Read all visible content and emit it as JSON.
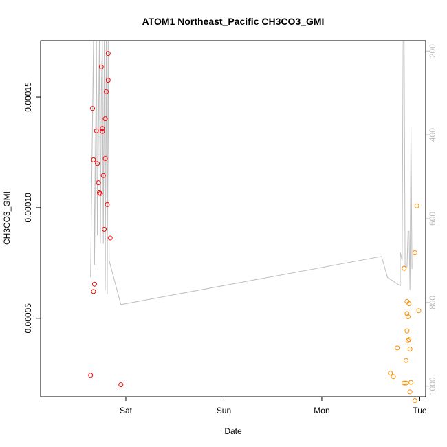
{
  "chart_data": {
    "type": "scatter",
    "title": "ATOM1 Northeast_Pacific CH3CO3_GMI",
    "xlabel": "Date",
    "ylabel": "CH3CO3_GMI",
    "x_axis": {
      "unit": "days",
      "range": [
        -0.87,
        3.06
      ],
      "ticks": [
        {
          "value": 0,
          "label": "Sat"
        },
        {
          "value": 1,
          "label": "Sun"
        },
        {
          "value": 2,
          "label": "Mon"
        },
        {
          "value": 3,
          "label": "Tue"
        }
      ]
    },
    "y_axis": {
      "range": [
        1.45e-05,
        0.0001755
      ],
      "ticks": [
        {
          "value": 5e-05,
          "label": "0.00005"
        },
        {
          "value": 0.0001,
          "label": "0.00010"
        },
        {
          "value": 0.00015,
          "label": "0.00015"
        }
      ]
    },
    "y2_axis": {
      "label": "",
      "range": [
        1025,
        175
      ],
      "color": "#bebebe",
      "ticks": [
        {
          "value": 200,
          "label": "200"
        },
        {
          "value": 400,
          "label": "400"
        },
        {
          "value": 600,
          "label": "600"
        },
        {
          "value": 800,
          "label": "800"
        },
        {
          "value": 1000,
          "label": "1000"
        }
      ]
    },
    "grid": false,
    "series": [
      {
        "color": "#ff0000",
        "marker": "open-circle",
        "points": [
          {
            "x": -0.36,
            "y": 2.42e-05
          },
          {
            "x": -0.34,
            "y": 0.0001448
          },
          {
            "x": -0.33,
            "y": 0.0001216
          },
          {
            "x": -0.33,
            "y": 6.21e-05
          },
          {
            "x": -0.32,
            "y": 6.54e-05
          },
          {
            "x": -0.3,
            "y": 0.0001347
          },
          {
            "x": -0.29,
            "y": 0.0001199
          },
          {
            "x": -0.28,
            "y": 0.0001113
          },
          {
            "x": -0.27,
            "y": 0.0001067
          },
          {
            "x": -0.26,
            "y": 0.0001064
          },
          {
            "x": -0.25,
            "y": 0.0001636
          },
          {
            "x": -0.24,
            "y": 0.0001358
          },
          {
            "x": -0.24,
            "y": 0.0001344
          },
          {
            "x": -0.23,
            "y": 0.0001145
          },
          {
            "x": -0.22,
            "y": 9.02e-05
          },
          {
            "x": -0.21,
            "y": 0.0001402
          },
          {
            "x": -0.21,
            "y": 0.0001222
          },
          {
            "x": -0.2,
            "y": 0.0001524
          },
          {
            "x": -0.19,
            "y": 0.0001014
          },
          {
            "x": -0.18,
            "y": 0.0001697
          },
          {
            "x": -0.18,
            "y": 0.0001576
          },
          {
            "x": -0.16,
            "y": 8.63e-05
          },
          {
            "x": -0.05,
            "y": 1.99e-05
          }
        ]
      },
      {
        "color": "#ff8c00",
        "marker": "open-circle",
        "points": [
          {
            "x": 2.7,
            "y": 2.52e-05
          },
          {
            "x": 2.73,
            "y": 2.36e-05
          },
          {
            "x": 2.77,
            "y": 3.66e-05
          },
          {
            "x": 2.84,
            "y": 7.26e-05
          },
          {
            "x": 2.84,
            "y": 2.07e-05
          },
          {
            "x": 2.86,
            "y": 3.09e-05
          },
          {
            "x": 2.86,
            "y": 2.07e-05
          },
          {
            "x": 2.87,
            "y": 5.76e-05
          },
          {
            "x": 2.87,
            "y": 4.43e-05
          },
          {
            "x": 2.87,
            "y": 5.21e-05
          },
          {
            "x": 2.88,
            "y": 3.99e-05
          },
          {
            "x": 2.88,
            "y": 5.07e-05
          },
          {
            "x": 2.89,
            "y": 5.66e-05
          },
          {
            "x": 2.89,
            "y": 4.04e-05
          },
          {
            "x": 2.9,
            "y": 3.61e-05
          },
          {
            "x": 2.9,
            "y": 1.67e-05
          },
          {
            "x": 2.91,
            "y": 2.1e-05
          },
          {
            "x": 2.95,
            "y": 7.96e-05
          },
          {
            "x": 2.95,
            "y": 1.28e-05
          },
          {
            "x": 2.97,
            "y": 0.0001008
          },
          {
            "x": 2.99,
            "y": 5.34e-05
          }
        ]
      }
    ],
    "profile_line": {
      "color": "#bebebe",
      "axis": "y2",
      "points": [
        {
          "x": -0.36,
          "y": 740
        },
        {
          "x": -0.33,
          "y": 175
        },
        {
          "x": -0.32,
          "y": 710
        },
        {
          "x": -0.3,
          "y": 175
        },
        {
          "x": -0.29,
          "y": 640
        },
        {
          "x": -0.27,
          "y": 175
        },
        {
          "x": -0.26,
          "y": 660
        },
        {
          "x": -0.25,
          "y": 300
        },
        {
          "x": -0.24,
          "y": 175
        },
        {
          "x": -0.23,
          "y": 660
        },
        {
          "x": -0.22,
          "y": 175
        },
        {
          "x": -0.21,
          "y": 770
        },
        {
          "x": -0.2,
          "y": 175
        },
        {
          "x": -0.19,
          "y": 780
        },
        {
          "x": -0.18,
          "y": 175
        },
        {
          "x": -0.17,
          "y": 700
        },
        {
          "x": -0.05,
          "y": 805
        },
        {
          "x": 2.61,
          "y": 690
        },
        {
          "x": 2.67,
          "y": 740
        },
        {
          "x": 2.8,
          "y": 760
        },
        {
          "x": 2.8,
          "y": 680
        },
        {
          "x": 2.82,
          "y": 700
        },
        {
          "x": 2.83,
          "y": 175
        },
        {
          "x": 2.84,
          "y": 175
        },
        {
          "x": 2.85,
          "y": 715
        },
        {
          "x": 2.87,
          "y": 715
        },
        {
          "x": 2.88,
          "y": 630
        },
        {
          "x": 2.89,
          "y": 630
        },
        {
          "x": 2.9,
          "y": 770
        },
        {
          "x": 2.91,
          "y": 380
        },
        {
          "x": 2.92,
          "y": 720
        }
      ]
    }
  }
}
